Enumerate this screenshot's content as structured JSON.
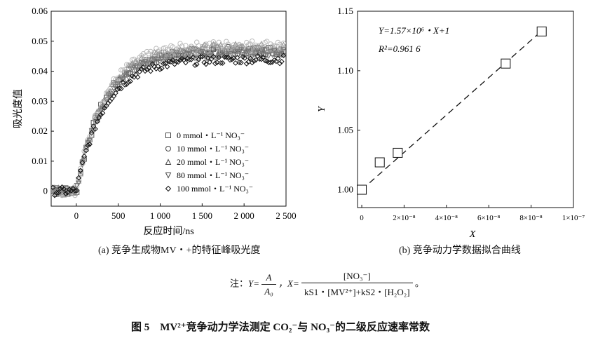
{
  "chart_data": [
    {
      "type": "scatter",
      "title": "",
      "xlabel": "反应时间/ns",
      "ylabel": "吸光度值",
      "xlim": [
        -300,
        2500
      ],
      "ylim": [
        -0.005,
        0.06
      ],
      "x_ticks": [
        0,
        500,
        1000,
        1500,
        2000,
        2500
      ],
      "x_tick_labels": [
        "0",
        "500",
        "1 000",
        "1 500",
        "2 000",
        "2 500"
      ],
      "y_ticks": [
        0,
        0.01,
        0.02,
        0.03,
        0.04,
        0.05,
        0.06
      ],
      "y_tick_labels": [
        "0",
        "0.01",
        "0.02",
        "0.03",
        "0.04",
        "0.05",
        "0.06"
      ],
      "legend_position": "lower-right",
      "series": [
        {
          "name": "0 mmol・L⁻¹ NO₃⁻",
          "marker": "square",
          "color": "#555555",
          "baseline": 0.0,
          "plateau": 0.047,
          "tau_ns": 330,
          "start_ns": 0
        },
        {
          "name": "10 mmol・L⁻¹ NO₃⁻",
          "marker": "circle",
          "color": "#bbbbbb",
          "baseline": 0.0,
          "plateau": 0.049,
          "tau_ns": 330,
          "start_ns": 0
        },
        {
          "name": "20 mmol・L⁻¹ NO₃⁻",
          "marker": "triangle-up",
          "color": "#999999",
          "baseline": 0.0,
          "plateau": 0.048,
          "tau_ns": 330,
          "start_ns": 0
        },
        {
          "name": "80 mmol・L⁻¹ NO₃⁻",
          "marker": "triangle-down",
          "color": "#777777",
          "baseline": 0.0,
          "plateau": 0.046,
          "tau_ns": 330,
          "start_ns": 0
        },
        {
          "name": "100 mmol・L⁻¹ NO₃⁻",
          "marker": "diamond",
          "color": "#111111",
          "baseline": 0.0,
          "plateau": 0.044,
          "tau_ns": 330,
          "start_ns": 0
        }
      ],
      "caption": "(a) 竞争生成物MV・+的特征峰吸光度"
    },
    {
      "type": "scatter",
      "title": "",
      "xlabel": "X",
      "ylabel": "Y",
      "xlim": [
        -2e-09,
        1e-07
      ],
      "ylim": [
        0.985,
        1.15
      ],
      "x_ticks": [
        0,
        2e-08,
        4e-08,
        6e-08,
        8e-08,
        1e-07
      ],
      "x_tick_labels": [
        "0",
        "2×10⁻⁸",
        "4×10⁻⁸",
        "6×10⁻⁸",
        "8×10⁻⁸",
        "1×10⁻⁷"
      ],
      "y_ticks": [
        1.0,
        1.05,
        1.1,
        1.15
      ],
      "y_tick_labels": [
        "1.00",
        "1.05",
        "1.10",
        "1.15"
      ],
      "points": [
        {
          "x": 0.0,
          "y": 1.0
        },
        {
          "x": 8.5e-09,
          "y": 1.023
        },
        {
          "x": 1.7e-08,
          "y": 1.031
        },
        {
          "x": 6.8e-08,
          "y": 1.106
        },
        {
          "x": 8.5e-08,
          "y": 1.133
        }
      ],
      "fit": {
        "slope": 1570000,
        "intercept": 1,
        "x_range": [
          0,
          8.5e-08
        ]
      },
      "annotation_equation": "Y=1.57×10⁶・X+1",
      "annotation_r2": "R²=0.961 6",
      "caption": "(b) 竞争动力学数据拟合曲线"
    }
  ],
  "note": {
    "prefix": "注：",
    "y_eq": "Y=",
    "y_num": "A",
    "y_den": "A₀",
    "x_eq": "，X=",
    "x_num": "[NO₃⁻]",
    "x_den": "kS1・[MV²⁺]+kS2・[H₂O₂]",
    "suffix": "。"
  },
  "figure_title": "图 5　MV²⁺竞争动力学法测定 CO₂⁻与 NO₃⁻的二级反应速率常数"
}
